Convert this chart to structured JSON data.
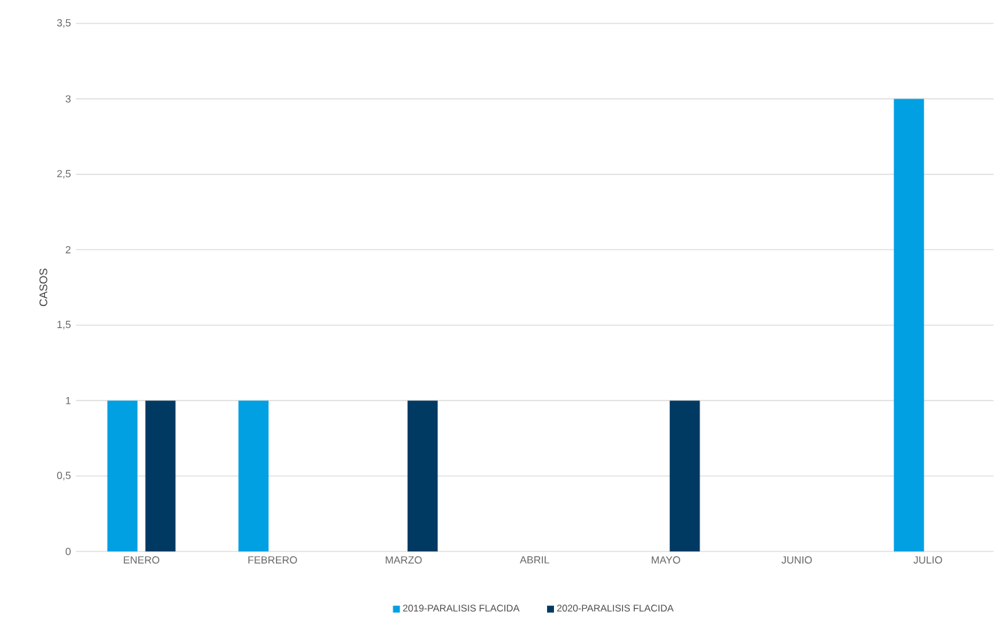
{
  "chart_data": {
    "type": "bar",
    "ylabel": "CASOS",
    "categories": [
      "ENERO",
      "FEBRERO",
      "MARZO",
      "ABRIL",
      "MAYO",
      "JUNIO",
      "JULIO"
    ],
    "series": [
      {
        "name": "2019-PARALISIS FLACIDA",
        "color": "#00a0e3",
        "values": [
          1,
          1,
          0,
          0,
          0,
          0,
          3
        ]
      },
      {
        "name": "2020-PARALISIS FLACIDA",
        "color": "#003a63",
        "values": [
          1,
          0,
          1,
          0,
          1,
          0,
          0
        ]
      }
    ],
    "ylim": [
      0,
      3.5
    ],
    "yticks": [
      0,
      {
        "value": 0.5,
        "label": "0,5"
      },
      1,
      {
        "value": 1.5,
        "label": "1,5"
      },
      2,
      {
        "value": 2.5,
        "label": "2,5"
      },
      3,
      {
        "value": 3.5,
        "label": "3,5"
      }
    ],
    "grid": "y",
    "legend": "bottom"
  }
}
